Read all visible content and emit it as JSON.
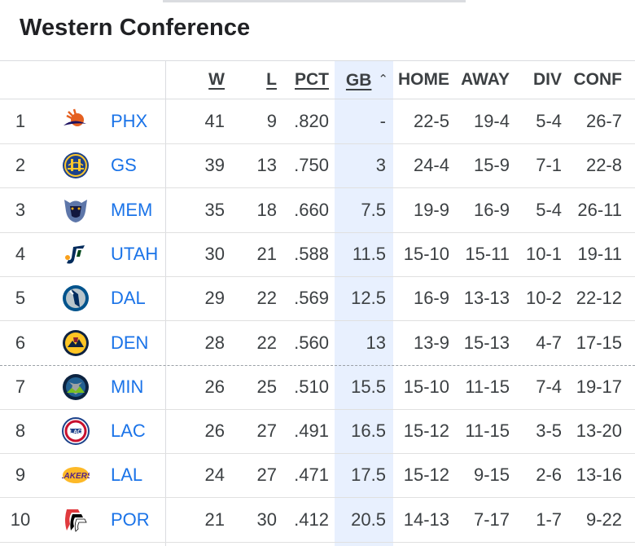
{
  "title": "Western Conference",
  "columns": {
    "w": "W",
    "l": "L",
    "pct": "PCT",
    "gb": "GB",
    "home": "HOME",
    "away": "AWAY",
    "div": "DIV",
    "conf": "CONF"
  },
  "rows": [
    {
      "rank": "1",
      "team": "PHX",
      "w": "41",
      "l": "9",
      "pct": ".820",
      "gb": "-",
      "home": "22-5",
      "away": "19-4",
      "div": "5-4",
      "conf": "26-7",
      "logo": "suns-logo-icon",
      "color": "#e56020"
    },
    {
      "rank": "2",
      "team": "GS",
      "w": "39",
      "l": "13",
      "pct": ".750",
      "gb": "3",
      "home": "24-4",
      "away": "15-9",
      "div": "7-1",
      "conf": "22-8",
      "logo": "warriors-logo-icon",
      "color": "#1d428a"
    },
    {
      "rank": "3",
      "team": "MEM",
      "w": "35",
      "l": "18",
      "pct": ".660",
      "gb": "7.5",
      "home": "19-9",
      "away": "16-9",
      "div": "5-4",
      "conf": "26-11",
      "logo": "grizzlies-logo-icon",
      "color": "#5d76a9"
    },
    {
      "rank": "4",
      "team": "UTAH",
      "w": "30",
      "l": "21",
      "pct": ".588",
      "gb": "11.5",
      "home": "15-10",
      "away": "15-11",
      "div": "10-1",
      "conf": "19-11",
      "logo": "jazz-logo-icon",
      "color": "#002b5c"
    },
    {
      "rank": "5",
      "team": "DAL",
      "w": "29",
      "l": "22",
      "pct": ".569",
      "gb": "12.5",
      "home": "16-9",
      "away": "13-13",
      "div": "10-2",
      "conf": "22-12",
      "logo": "mavericks-logo-icon",
      "color": "#00538c"
    },
    {
      "rank": "6",
      "team": "DEN",
      "w": "28",
      "l": "22",
      "pct": ".560",
      "gb": "13",
      "home": "13-9",
      "away": "15-13",
      "div": "4-7",
      "conf": "17-15",
      "logo": "nuggets-logo-icon",
      "color": "#0e2240"
    },
    {
      "rank": "7",
      "team": "MIN",
      "w": "26",
      "l": "25",
      "pct": ".510",
      "gb": "15.5",
      "home": "15-10",
      "away": "11-15",
      "div": "7-4",
      "conf": "19-17",
      "logo": "timberwolves-logo-icon",
      "color": "#0c2340"
    },
    {
      "rank": "8",
      "team": "LAC",
      "w": "26",
      "l": "27",
      "pct": ".491",
      "gb": "16.5",
      "home": "15-12",
      "away": "11-15",
      "div": "3-5",
      "conf": "13-20",
      "logo": "clippers-logo-icon",
      "color": "#c8102e"
    },
    {
      "rank": "9",
      "team": "LAL",
      "w": "24",
      "l": "27",
      "pct": ".471",
      "gb": "17.5",
      "home": "15-12",
      "away": "9-15",
      "div": "2-6",
      "conf": "13-16",
      "logo": "lakers-logo-icon",
      "color": "#552583"
    },
    {
      "rank": "10",
      "team": "POR",
      "w": "21",
      "l": "30",
      "pct": ".412",
      "gb": "20.5",
      "home": "14-13",
      "away": "7-17",
      "div": "1-7",
      "conf": "9-22",
      "logo": "trail-blazers-logo-icon",
      "color": "#e03a3e"
    }
  ],
  "colors": {
    "team_link": "#1a73e8",
    "gb_highlight": "#e8f0fe",
    "text": "#3c4043"
  }
}
